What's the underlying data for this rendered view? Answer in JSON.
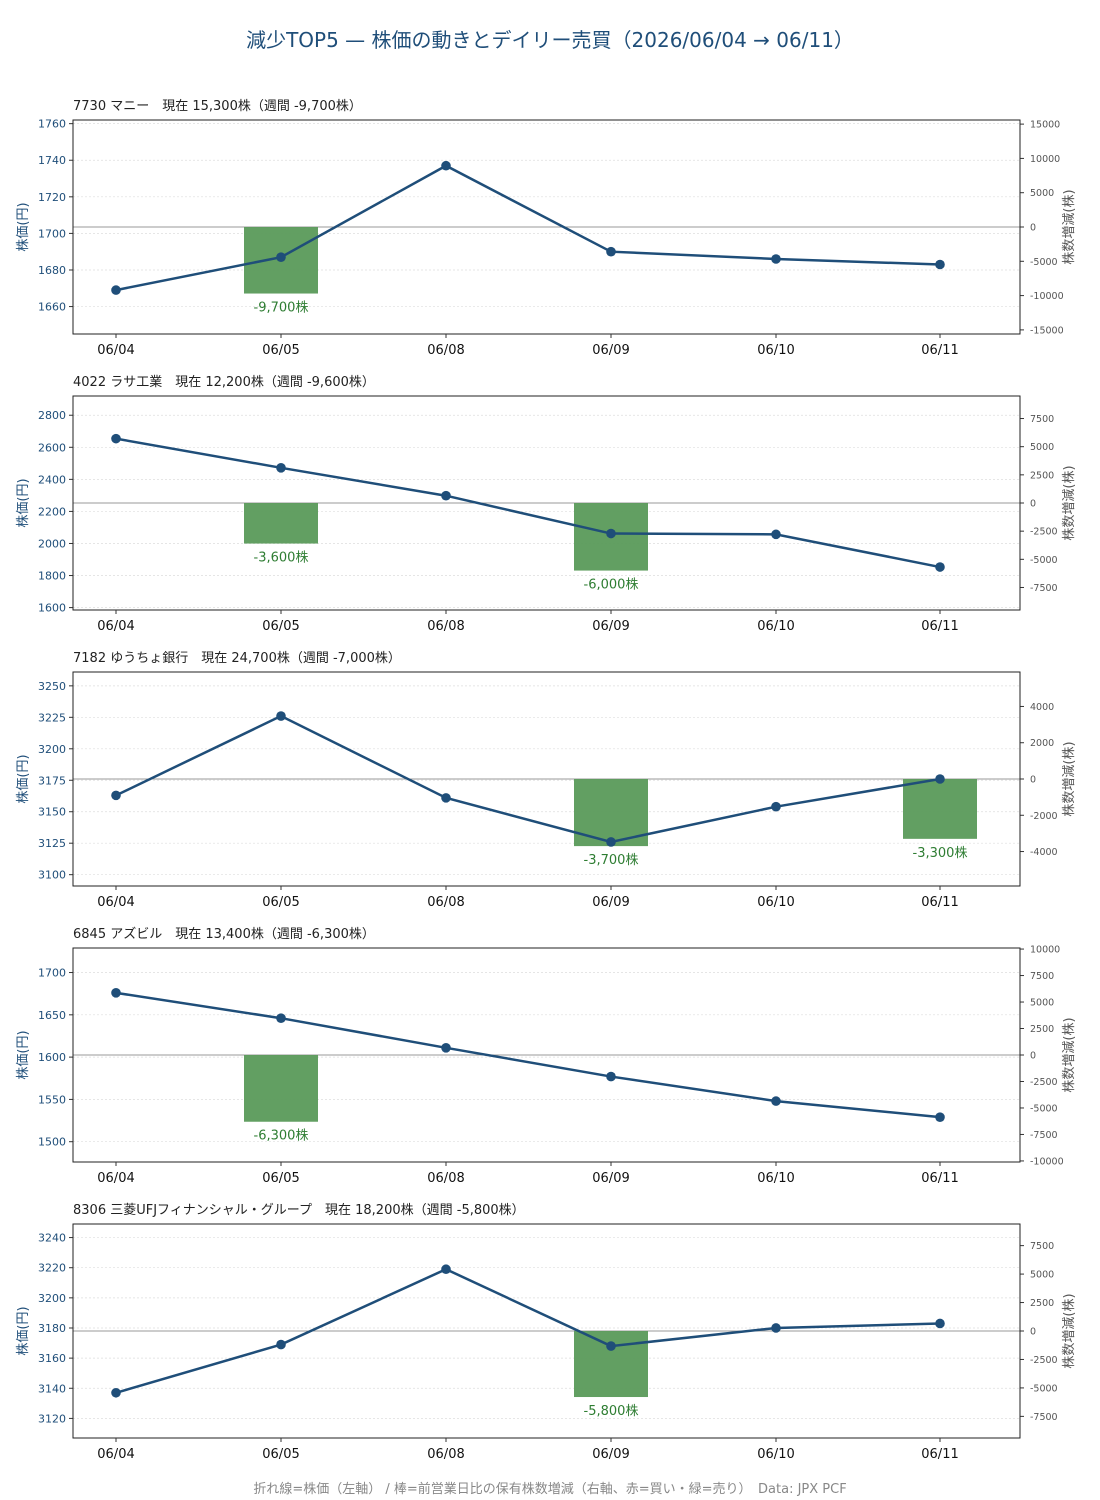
{
  "title": "減少TOP5 — 株価の動きとデイリー売買（2026/06/04 → 06/11）",
  "footer": "折れ線=株価（左軸） / 棒=前営業日比の保有株数増減（右軸、赤=買い・緑=売り）　Data: JPX PCF",
  "colors": {
    "line": "#1f4e79",
    "bar": "#5a9a5a",
    "bar_label": "#2e7d32",
    "axis_right": "#555555",
    "zero_line": "#999999"
  },
  "chart_data": [
    {
      "type": "bar+line",
      "title": "7730 マニー　現在 15,300株（週間 -9,700株）",
      "categories": [
        "06/04",
        "06/05",
        "06/08",
        "06/09",
        "06/10",
        "06/11"
      ],
      "ylabel": "株価(円)",
      "y2label": "株数増減(株)",
      "ylim": [
        1645,
        1762
      ],
      "yticks": [
        1660,
        1680,
        1700,
        1720,
        1740,
        1760
      ],
      "y2lim": [
        -15600,
        15600
      ],
      "y2ticks": [
        -15000,
        -10000,
        -5000,
        0,
        5000,
        10000,
        15000
      ],
      "series": [
        {
          "kind": "line",
          "values": [
            1669,
            1687,
            1737,
            1690,
            1686,
            1683
          ]
        },
        {
          "kind": "bar",
          "values": [
            null,
            -9700,
            null,
            null,
            null,
            null
          ],
          "labels": [
            "",
            "-9,700株",
            "",
            "",
            "",
            ""
          ]
        }
      ]
    },
    {
      "type": "bar+line",
      "title": "4022 ラサ工業　現在 12,200株（週間 -9,600株）",
      "categories": [
        "06/04",
        "06/05",
        "06/08",
        "06/09",
        "06/10",
        "06/11"
      ],
      "ylabel": "株価(円)",
      "y2label": "株数増減(株)",
      "ylim": [
        1585,
        2920
      ],
      "yticks": [
        1600,
        1800,
        2000,
        2200,
        2400,
        2600,
        2800
      ],
      "y2lim": [
        -9500,
        9500
      ],
      "y2ticks": [
        -7500,
        -5000,
        -2500,
        0,
        2500,
        5000,
        7500
      ],
      "series": [
        {
          "kind": "line",
          "values": [
            2654,
            2472,
            2298,
            2062,
            2057,
            1853
          ]
        },
        {
          "kind": "bar",
          "values": [
            null,
            -3600,
            null,
            -6000,
            null,
            null
          ],
          "labels": [
            "",
            "-3,600株",
            "",
            "-6,000株",
            "",
            ""
          ]
        }
      ]
    },
    {
      "type": "bar+line",
      "title": "7182 ゆうちょ銀行　現在 24,700株（週間 -7,000株）",
      "categories": [
        "06/04",
        "06/05",
        "06/08",
        "06/09",
        "06/10",
        "06/11"
      ],
      "ylabel": "株価(円)",
      "y2label": "株数増減(株)",
      "ylim": [
        3091,
        3261
      ],
      "yticks": [
        3100,
        3125,
        3150,
        3175,
        3200,
        3225,
        3250
      ],
      "y2lim": [
        -5900,
        5900
      ],
      "y2ticks": [
        -4000,
        -2000,
        0,
        2000,
        4000
      ],
      "series": [
        {
          "kind": "line",
          "values": [
            3163,
            3226,
            3161,
            3126,
            3154,
            3176
          ]
        },
        {
          "kind": "bar",
          "values": [
            null,
            null,
            null,
            -3700,
            null,
            -3300
          ],
          "labels": [
            "",
            "",
            "",
            "-3,700株",
            "",
            "-3,300株"
          ]
        }
      ]
    },
    {
      "type": "bar+line",
      "title": "6845 アズビル　現在 13,400株（週間 -6,300株）",
      "categories": [
        "06/04",
        "06/05",
        "06/08",
        "06/09",
        "06/10",
        "06/11"
      ],
      "ylabel": "株価(円)",
      "y2label": "株数増減(株)",
      "ylim": [
        1476,
        1729
      ],
      "yticks": [
        1500,
        1550,
        1600,
        1650,
        1700
      ],
      "y2lim": [
        -10100,
        10100
      ],
      "y2ticks": [
        -10000,
        -7500,
        -5000,
        -2500,
        0,
        2500,
        5000,
        7500,
        10000
      ],
      "series": [
        {
          "kind": "line",
          "values": [
            1676,
            1646,
            1611,
            1577,
            1548,
            1529
          ]
        },
        {
          "kind": "bar",
          "values": [
            null,
            -6300,
            null,
            null,
            null,
            null
          ],
          "labels": [
            "",
            "-6,300株",
            "",
            "",
            "",
            ""
          ]
        }
      ]
    },
    {
      "type": "bar+line",
      "title": "8306 三菱UFJフィナンシャル・グループ　現在 18,200株（週間 -5,800株）",
      "categories": [
        "06/04",
        "06/05",
        "06/08",
        "06/09",
        "06/10",
        "06/11"
      ],
      "ylabel": "株価(円)",
      "y2label": "株数増減(株)",
      "ylim": [
        3107,
        3249
      ],
      "yticks": [
        3120,
        3140,
        3160,
        3180,
        3200,
        3220,
        3240
      ],
      "y2lim": [
        -9400,
        9400
      ],
      "y2ticks": [
        -7500,
        -5000,
        -2500,
        0,
        2500,
        5000,
        7500
      ],
      "series": [
        {
          "kind": "line",
          "values": [
            3137,
            3169,
            3219,
            3168,
            3180,
            3183
          ]
        },
        {
          "kind": "bar",
          "values": [
            null,
            null,
            null,
            -5800,
            null,
            null
          ],
          "labels": [
            "",
            "",
            "",
            "-5,800株",
            "",
            ""
          ]
        }
      ]
    }
  ]
}
